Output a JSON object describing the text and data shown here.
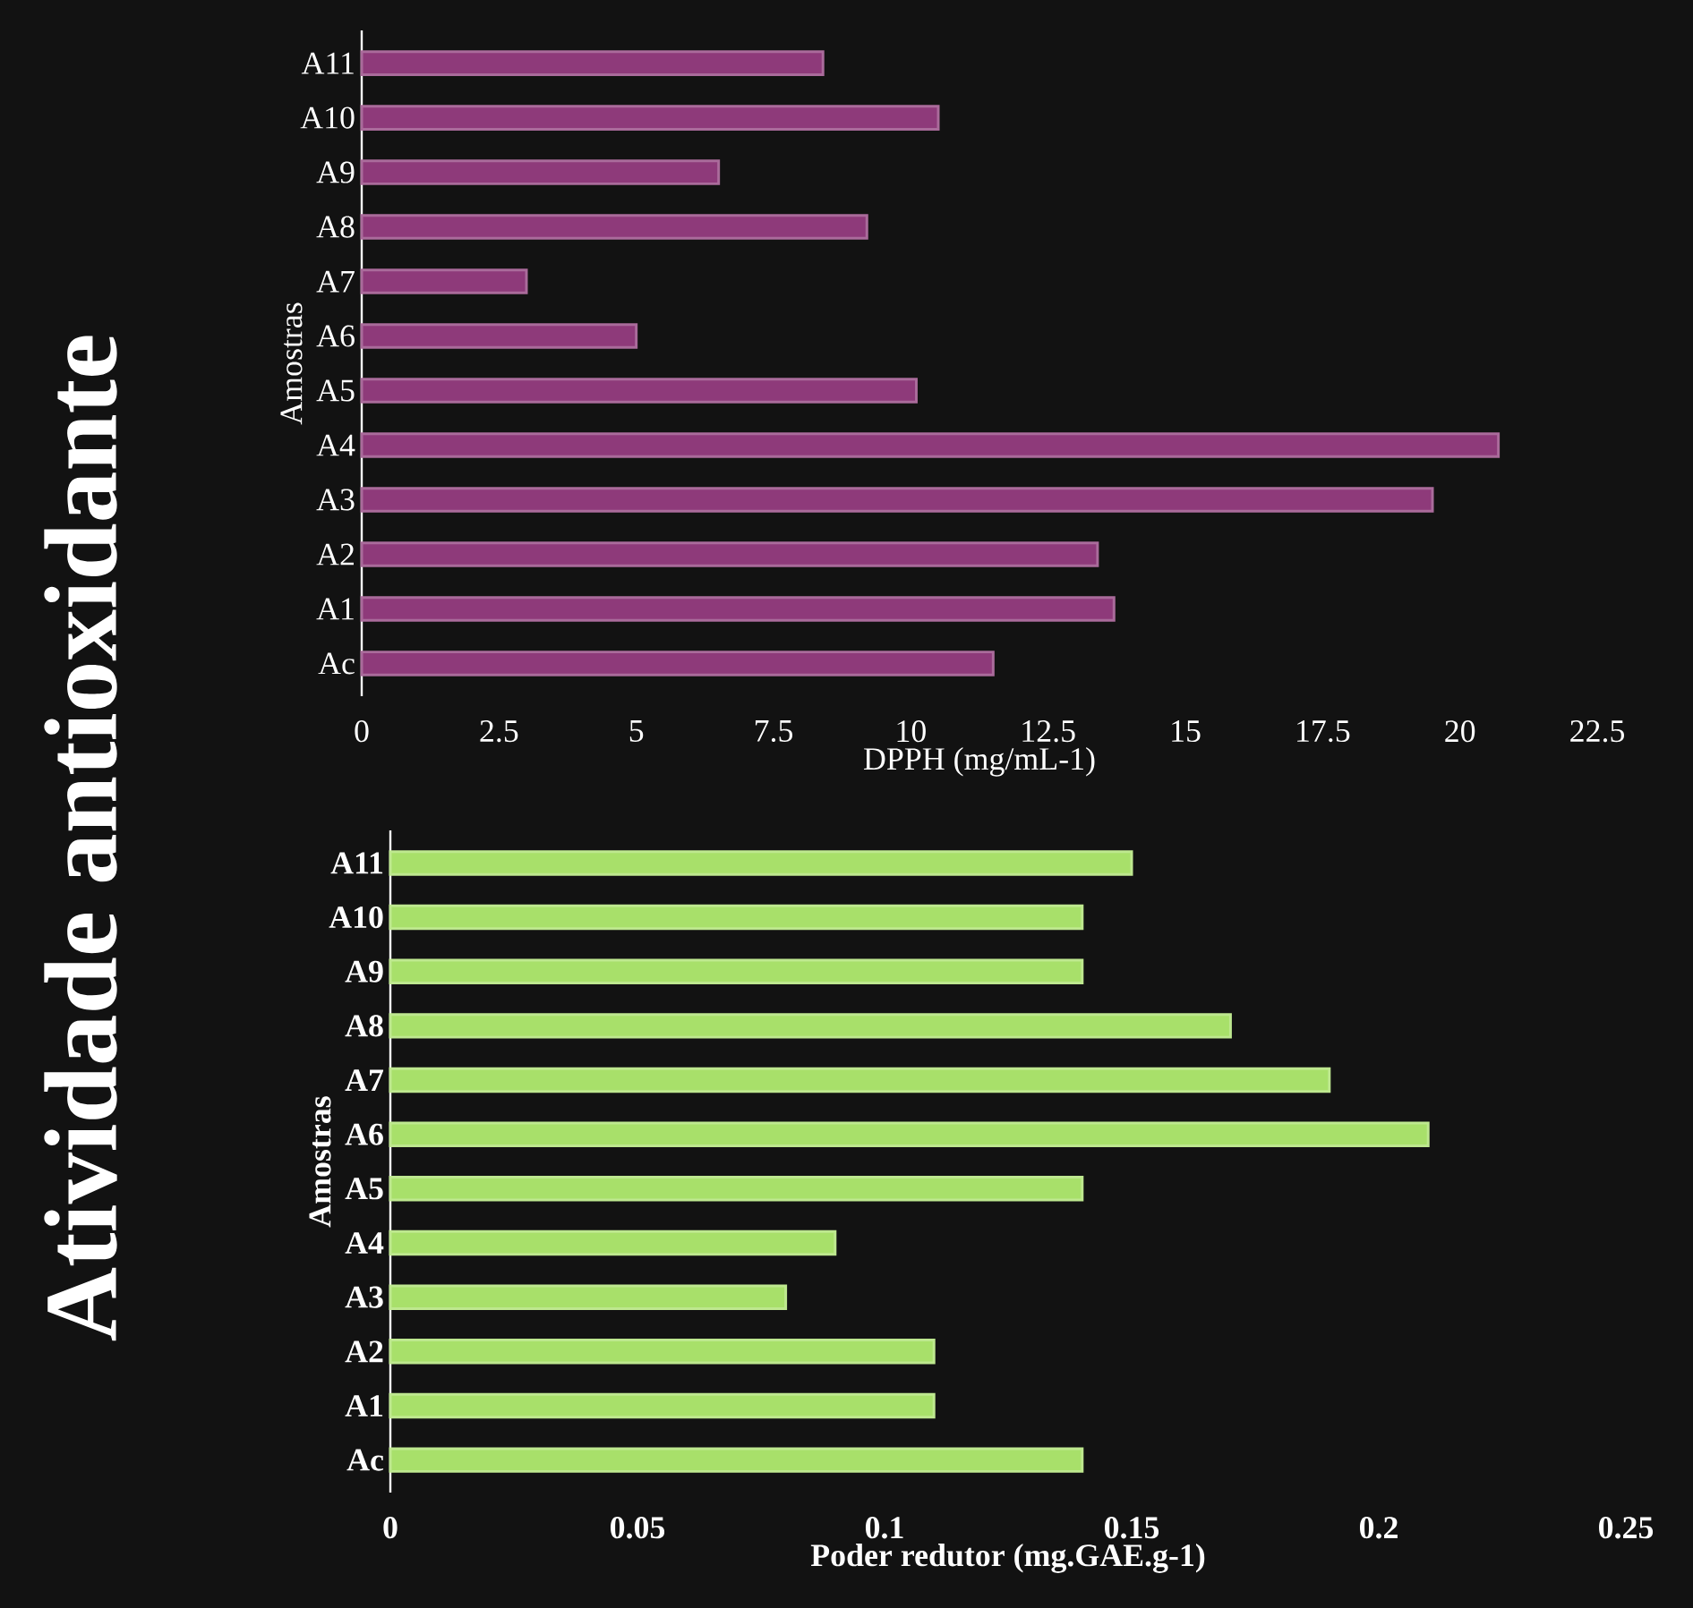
{
  "chart_data": [
    {
      "type": "other",
      "title": "Atividade antioxidante"
    },
    {
      "type": "bar",
      "orientation": "horizontal",
      "xlabel": "DPPH (mg/mL-1)",
      "ylabel": "Amostras",
      "categories": [
        "A11",
        "A10",
        "A9",
        "A8",
        "A7",
        "A6",
        "A5",
        "A4",
        "A3",
        "A2",
        "A1",
        "Ac"
      ],
      "values": [
        8.4,
        10.5,
        6.5,
        9.2,
        3.0,
        5.0,
        10.1,
        20.7,
        19.5,
        13.4,
        13.7,
        11.5
      ],
      "color": "#8e3a7a",
      "xlim": [
        0,
        22.5
      ],
      "xticks": [
        0,
        2.5,
        5,
        7.5,
        10,
        12.5,
        15,
        17.5,
        20,
        22.5
      ]
    },
    {
      "type": "bar",
      "orientation": "horizontal",
      "xlabel": "Poder redutor (mg.GAE.g-1)",
      "ylabel": "Amostras",
      "categories": [
        "A11",
        "A10",
        "A9",
        "A8",
        "A7",
        "A6",
        "A5",
        "A4",
        "A3",
        "A2",
        "A1",
        "Ac"
      ],
      "values": [
        0.15,
        0.14,
        0.14,
        0.17,
        0.19,
        0.21,
        0.14,
        0.09,
        0.08,
        0.11,
        0.11,
        0.14
      ],
      "color": "#a8e06a",
      "xlim": [
        0,
        0.25
      ],
      "xticks": [
        0,
        0.05,
        0.1,
        0.15,
        0.2,
        0.25
      ]
    }
  ]
}
